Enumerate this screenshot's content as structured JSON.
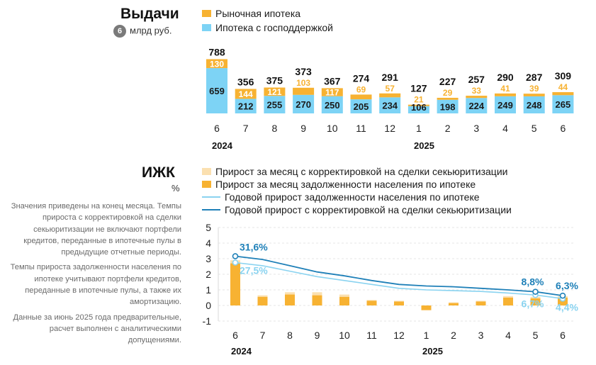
{
  "issuance": {
    "title": "Выдачи",
    "unit_badge": "6",
    "unit": "млрд руб.",
    "legend": [
      {
        "label": "Рыночная ипотека",
        "color": "#F7B232"
      },
      {
        "label": "Ипотека с господдержкой",
        "color": "#7DD3F5"
      }
    ],
    "years": [
      "2024",
      "2025"
    ]
  },
  "izhk": {
    "title": "ИЖК",
    "unit": "%",
    "legend": [
      {
        "label": "Прирост за месяц с корректировкой на сделки секьюритизации",
        "color": "#FBE0B0"
      },
      {
        "label": "Прирост за месяц задолженности населения по ипотеке",
        "color": "#F7B232"
      },
      {
        "label": "Годовой прирост задолженности населения по ипотеке",
        "color": "#8AD3F0"
      },
      {
        "label": "Годовой прирост с корректировкой на сделки секьюритизации",
        "color": "#1F80B8"
      }
    ],
    "years": [
      "2024",
      "2025"
    ],
    "notes": [
      "Значения приведены на конец месяца. Темпы прироста с корректировкой на сделки секьюритизации не включают портфели кредитов, переданные в ипотечные пулы в предыдущие отчетные периоды.",
      "Темпы прироста задолженности населения по ипотеке учитывают портфели кредитов, переданные в ипотечные пулы, а также их амортизацию.",
      "Данные за июнь 2025 года предварительные, расчет выполнен с аналитическими допущениями."
    ]
  },
  "chart_data": [
    {
      "type": "bar",
      "stacked": true,
      "title": "Выдачи",
      "ylabel": "млрд руб.",
      "categories": [
        "6",
        "7",
        "8",
        "9",
        "10",
        "11",
        "12",
        "1",
        "2",
        "3",
        "4",
        "5",
        "6"
      ],
      "totals": [
        788,
        356,
        375,
        373,
        367,
        274,
        291,
        127,
        227,
        257,
        290,
        287,
        309
      ],
      "series": [
        {
          "name": "Ипотека с господдержкой",
          "color": "#7DD3F5",
          "values": [
            659,
            212,
            255,
            270,
            250,
            205,
            234,
            106,
            198,
            224,
            249,
            248,
            265
          ]
        },
        {
          "name": "Рыночная ипотека",
          "color": "#F7B232",
          "values": [
            130,
            144,
            121,
            103,
            117,
            69,
            57,
            21,
            29,
            33,
            41,
            39,
            44
          ]
        }
      ]
    },
    {
      "type": "bar+line",
      "title": "ИЖК",
      "ylabel": "%",
      "ylim": [
        -1,
        5
      ],
      "yticks": [
        "5",
        "4",
        "3",
        "2",
        "1",
        "0",
        "-1"
      ],
      "categories": [
        "6",
        "7",
        "8",
        "9",
        "10",
        "11",
        "12",
        "1",
        "2",
        "3",
        "4",
        "5",
        "6"
      ],
      "series": [
        {
          "name": "Прирост за месяц с корректировкой на сделки секьюритизации",
          "kind": "bar",
          "color": "#FBE0B0",
          "values": [
            2.9,
            0.65,
            0.85,
            0.85,
            0.7,
            0.35,
            0.3,
            -0.3,
            0.2,
            0.3,
            0.6,
            0.55,
            0.6
          ]
        },
        {
          "name": "Прирост за месяц задолженности населения по ипотеке",
          "kind": "bar",
          "color": "#F7B232",
          "values": [
            2.7,
            0.55,
            0.7,
            0.65,
            0.55,
            0.3,
            0.25,
            -0.3,
            0.15,
            0.25,
            0.5,
            0.45,
            0.5
          ]
        },
        {
          "name": "Годовой прирост задолженности населения по ипотеке",
          "kind": "line",
          "color": "#8AD3F0",
          "values": [
            2.75,
            2.55,
            2.2,
            1.85,
            1.6,
            1.35,
            1.1,
            1.0,
            0.95,
            0.9,
            0.8,
            0.67,
            0.44
          ]
        },
        {
          "name": "Годовой прирост с корректировкой на сделки секьюритизации",
          "kind": "line",
          "color": "#1F80B8",
          "values": [
            3.16,
            2.95,
            2.55,
            2.15,
            1.9,
            1.6,
            1.35,
            1.25,
            1.2,
            1.1,
            1.0,
            0.88,
            0.63
          ]
        }
      ],
      "annotations": [
        {
          "text": "31,6%",
          "series": 3,
          "index": 0,
          "color": "#1F80B8"
        },
        {
          "text": "27,5%",
          "series": 2,
          "index": 0,
          "color": "#8AD3F0"
        },
        {
          "text": "8,8%",
          "series": 3,
          "index": 11,
          "color": "#1F80B8"
        },
        {
          "text": "6,7%",
          "series": 2,
          "index": 11,
          "color": "#8AD3F0"
        },
        {
          "text": "6,3%",
          "series": 3,
          "index": 12,
          "color": "#1F80B8"
        },
        {
          "text": "4,4%",
          "series": 2,
          "index": 12,
          "color": "#8AD3F0"
        }
      ]
    }
  ]
}
